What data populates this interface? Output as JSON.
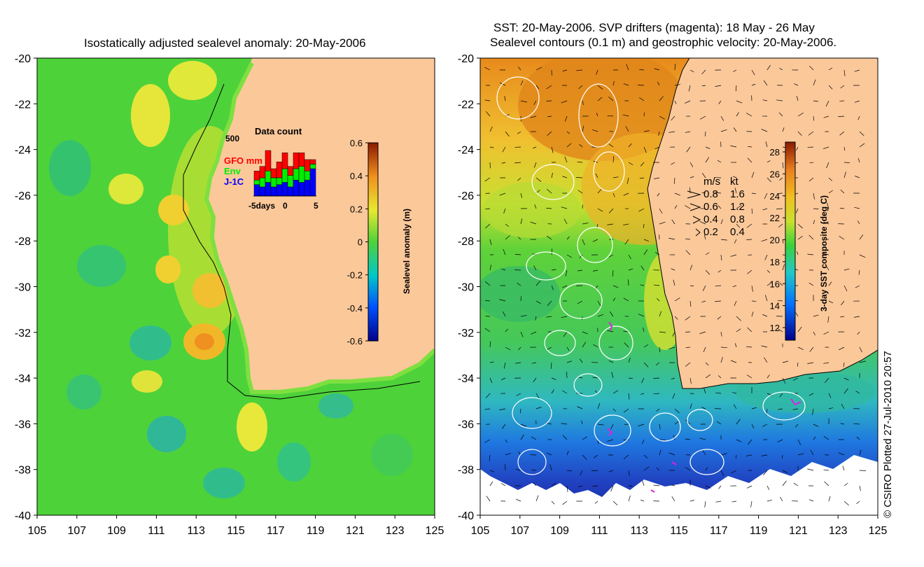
{
  "left_panel": {
    "title": "Isostatically adjusted sealevel anomaly: 20-May-2006",
    "y_ticks": [
      "-20",
      "-22",
      "-24",
      "-26",
      "-28",
      "-30",
      "-32",
      "-34",
      "-36",
      "-38",
      "-40"
    ],
    "x_ticks": [
      "105",
      "107",
      "109",
      "111",
      "113",
      "115",
      "117",
      "119",
      "121",
      "123",
      "125"
    ],
    "colorbar": {
      "label": "Sealevel anomaly (m)",
      "ticks": [
        "0.6",
        "0.4",
        "0.2",
        "0",
        "-0.2",
        "-0.4",
        "-0.6"
      ]
    },
    "data_count": {
      "title": "Data count",
      "max_label": "500",
      "series": [
        {
          "name": "GFO mm",
          "color": "#ff0000"
        },
        {
          "name": "Env",
          "color": "#00ee00"
        },
        {
          "name": "J-1C",
          "color": "#0000ff"
        }
      ],
      "x_labels": [
        "-5days",
        "0",
        "5"
      ],
      "bars": [
        {
          "j1c": 0.25,
          "env": 0.1,
          "gfo": 0.2
        },
        {
          "j1c": 0.2,
          "env": 0.2,
          "gfo": 0.25
        },
        {
          "j1c": 0.3,
          "env": 0.25,
          "gfo": 0.45
        },
        {
          "j1c": 0.2,
          "env": 0.2,
          "gfo": 0.2
        },
        {
          "j1c": 0.25,
          "env": 0.15,
          "gfo": 0.35
        },
        {
          "j1c": 0.3,
          "env": 0.3,
          "gfo": 0.35
        },
        {
          "j1c": 0.2,
          "env": 0.25,
          "gfo": 0.2
        },
        {
          "j1c": 0.35,
          "env": 0.25,
          "gfo": 0.35
        },
        {
          "j1c": 0.3,
          "env": 0.35,
          "gfo": 0.3
        },
        {
          "j1c": 0.35,
          "env": 0.2,
          "gfo": 0.25
        },
        {
          "j1c": 0.6,
          "env": 0.1,
          "gfo": 0.1
        }
      ]
    }
  },
  "right_panel": {
    "title_line1": "SST: 20-May-2006. SVP drifters (magenta): 18 May - 26 May",
    "title_line2": "Sealevel contours (0.1 m) and geostrophic velocity: 20-May-2006.",
    "y_ticks": [
      "-20",
      "-22",
      "-24",
      "-26",
      "-28",
      "-30",
      "-32",
      "-34",
      "-36",
      "-38",
      "-40"
    ],
    "x_ticks": [
      "105",
      "107",
      "109",
      "111",
      "113",
      "115",
      "117",
      "119",
      "121",
      "123",
      "125"
    ],
    "colorbar": {
      "label": "3-day SST composite (deg C)",
      "ticks": [
        "28",
        "26",
        "24",
        "22",
        "20",
        "18",
        "16",
        "14",
        "12"
      ]
    },
    "velocity_legend": {
      "header_ms": "m/s",
      "header_kt": "kt",
      "rows": [
        {
          "ms": "0.8",
          "kt": "1.6"
        },
        {
          "ms": "0.6",
          "kt": "1.2"
        },
        {
          "ms": "0.4",
          "kt": "0.8"
        },
        {
          "ms": "0.2",
          "kt": "0.4"
        }
      ]
    }
  },
  "credit": "© CSIRO Plotted 27-Jul-2010 20:57",
  "colors": {
    "land": "#fbc89a",
    "sla_background": "#4ed23a",
    "sst_warm": "#ec9a1f",
    "sst_cool": "#2a9bd6"
  }
}
